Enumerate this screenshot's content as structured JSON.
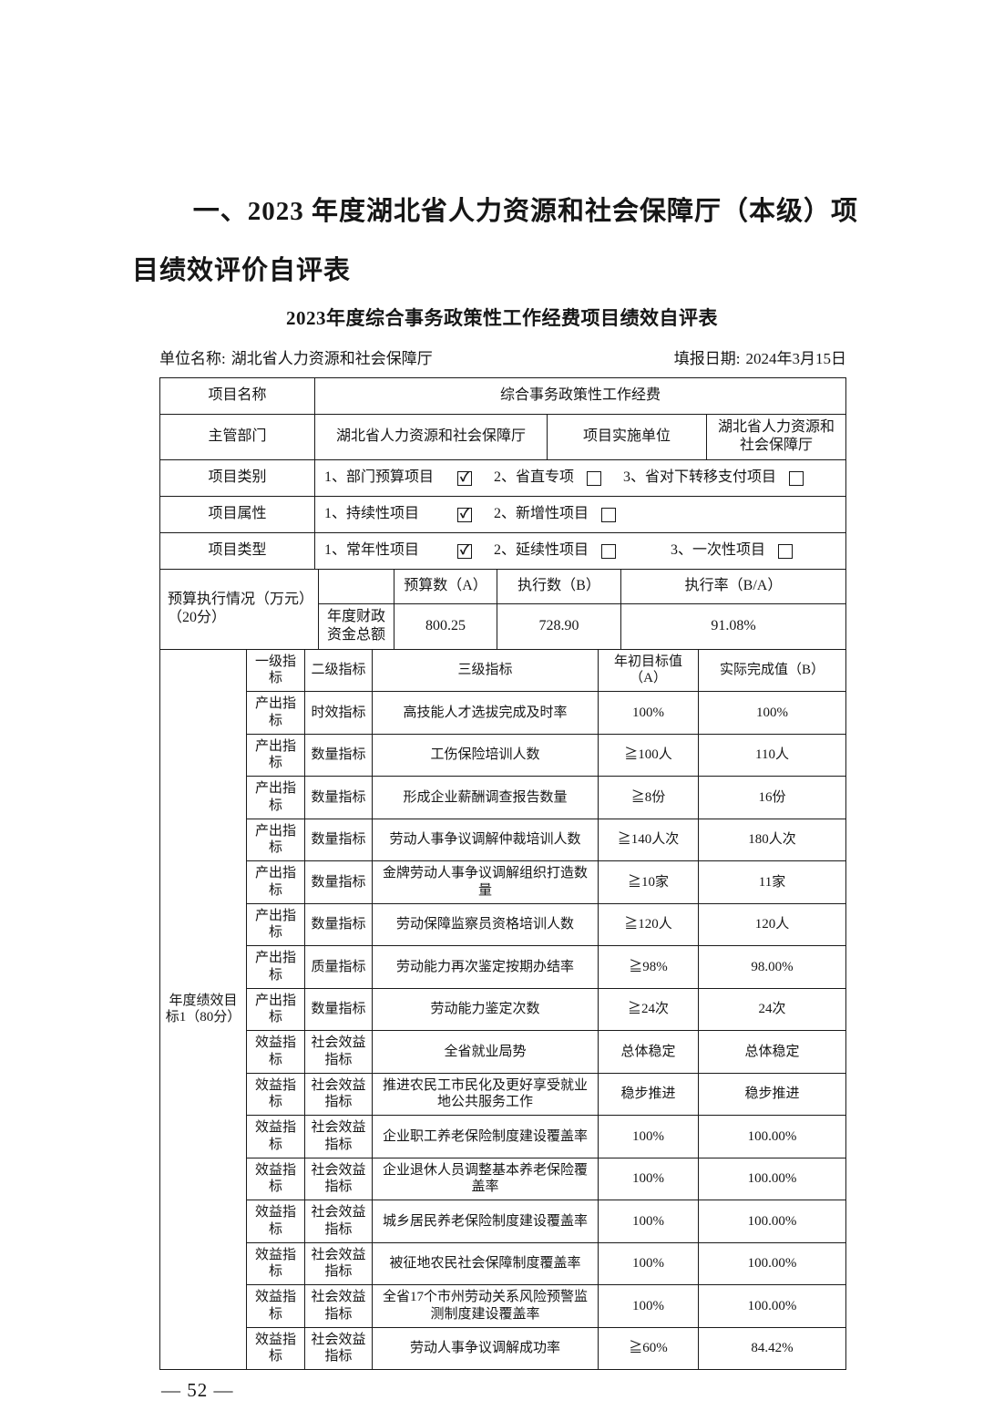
{
  "page": {
    "section_heading": "一、2023 年度湖北省人力资源和社会保障厅（本级）项目绩效评价自评表",
    "table_title": "2023年度综合事务政策性工作经费项目绩效自评表",
    "unit_name_label": "单位名称:",
    "unit_name_value": "湖北省人力资源和社会保障厅",
    "report_date_label": "填报日期:",
    "report_date_value": "2024年3月15日",
    "page_number": "— 52 —"
  },
  "project_info": {
    "name_label": "项目名称",
    "name_value": "综合事务政策性工作经费",
    "dept_label": "主管部门",
    "dept_value": "湖北省人力资源和社会保障厅",
    "impl_label": "项目实施单位",
    "impl_value": "湖北省人力资源和社会保障厅",
    "category_label": "项目类别",
    "category_options": [
      {
        "text": "1、部门预算项目",
        "mark": "✓"
      },
      {
        "text": "2、省直专项",
        "mark": ""
      },
      {
        "text": "3、省对下转移支付项目",
        "mark": ""
      }
    ],
    "attribute_label": "项目属性",
    "attribute_options": [
      {
        "text": "1、持续性项目",
        "mark": "✓"
      },
      {
        "text": "2、新增性项目",
        "mark": ""
      }
    ],
    "type_label": "项目类型",
    "type_options": [
      {
        "text": "1、常年性项目",
        "mark": "✓"
      },
      {
        "text": "2、延续性项目",
        "mark": ""
      },
      {
        "text": "3、一次性项目",
        "mark": ""
      }
    ]
  },
  "budget": {
    "section_label": "预算执行情况（万元）（20分）",
    "row_label": "年度财政资金总额",
    "col_budget": "预算数（A）",
    "col_executed": "执行数（B）",
    "col_rate": "执行率（B/A）",
    "budget_amount": "800.25",
    "executed_amount": "728.90",
    "execution_rate": "91.08%"
  },
  "indicators": {
    "group_label": "年度绩效目标1（80分）",
    "headers": [
      "一级指标",
      "二级指标",
      "三级指标",
      "年初目标值（A）",
      "实际完成值（B）"
    ],
    "rows": [
      [
        "产出指标",
        "时效指标",
        "高技能人才选拔完成及时率",
        "100%",
        "100%"
      ],
      [
        "产出指标",
        "数量指标",
        "工伤保险培训人数",
        "≧100人",
        "110人"
      ],
      [
        "产出指标",
        "数量指标",
        "形成企业薪酬调查报告数量",
        "≧8份",
        "16份"
      ],
      [
        "产出指标",
        "数量指标",
        "劳动人事争议调解仲裁培训人数",
        "≧140人次",
        "180人次"
      ],
      [
        "产出指标",
        "数量指标",
        "金牌劳动人事争议调解组织打造数量",
        "≧10家",
        "11家"
      ],
      [
        "产出指标",
        "数量指标",
        "劳动保障监察员资格培训人数",
        "≧120人",
        "120人"
      ],
      [
        "产出指标",
        "质量指标",
        "劳动能力再次鉴定按期办结率",
        "≧98%",
        "98.00%"
      ],
      [
        "产出指标",
        "数量指标",
        "劳动能力鉴定次数",
        "≧24次",
        "24次"
      ],
      [
        "效益指标",
        "社会效益指标",
        "全省就业局势",
        "总体稳定",
        "总体稳定"
      ],
      [
        "效益指标",
        "社会效益指标",
        "推进农民工市民化及更好享受就业地公共服务工作",
        "稳步推进",
        "稳步推进"
      ],
      [
        "效益指标",
        "社会效益指标",
        "企业职工养老保险制度建设覆盖率",
        "100%",
        "100.00%"
      ],
      [
        "效益指标",
        "社会效益指标",
        "企业退休人员调整基本养老保险覆盖率",
        "100%",
        "100.00%"
      ],
      [
        "效益指标",
        "社会效益指标",
        "城乡居民养老保险制度建设覆盖率",
        "100%",
        "100.00%"
      ],
      [
        "效益指标",
        "社会效益指标",
        "被征地农民社会保障制度覆盖率",
        "100%",
        "100.00%"
      ],
      [
        "效益指标",
        "社会效益指标",
        "全省17个市州劳动关系风险预警监测制度建设覆盖率",
        "100%",
        "100.00%"
      ],
      [
        "效益指标",
        "社会效益指标",
        "劳动人事争议调解成功率",
        "≧60%",
        "84.42%"
      ]
    ]
  }
}
